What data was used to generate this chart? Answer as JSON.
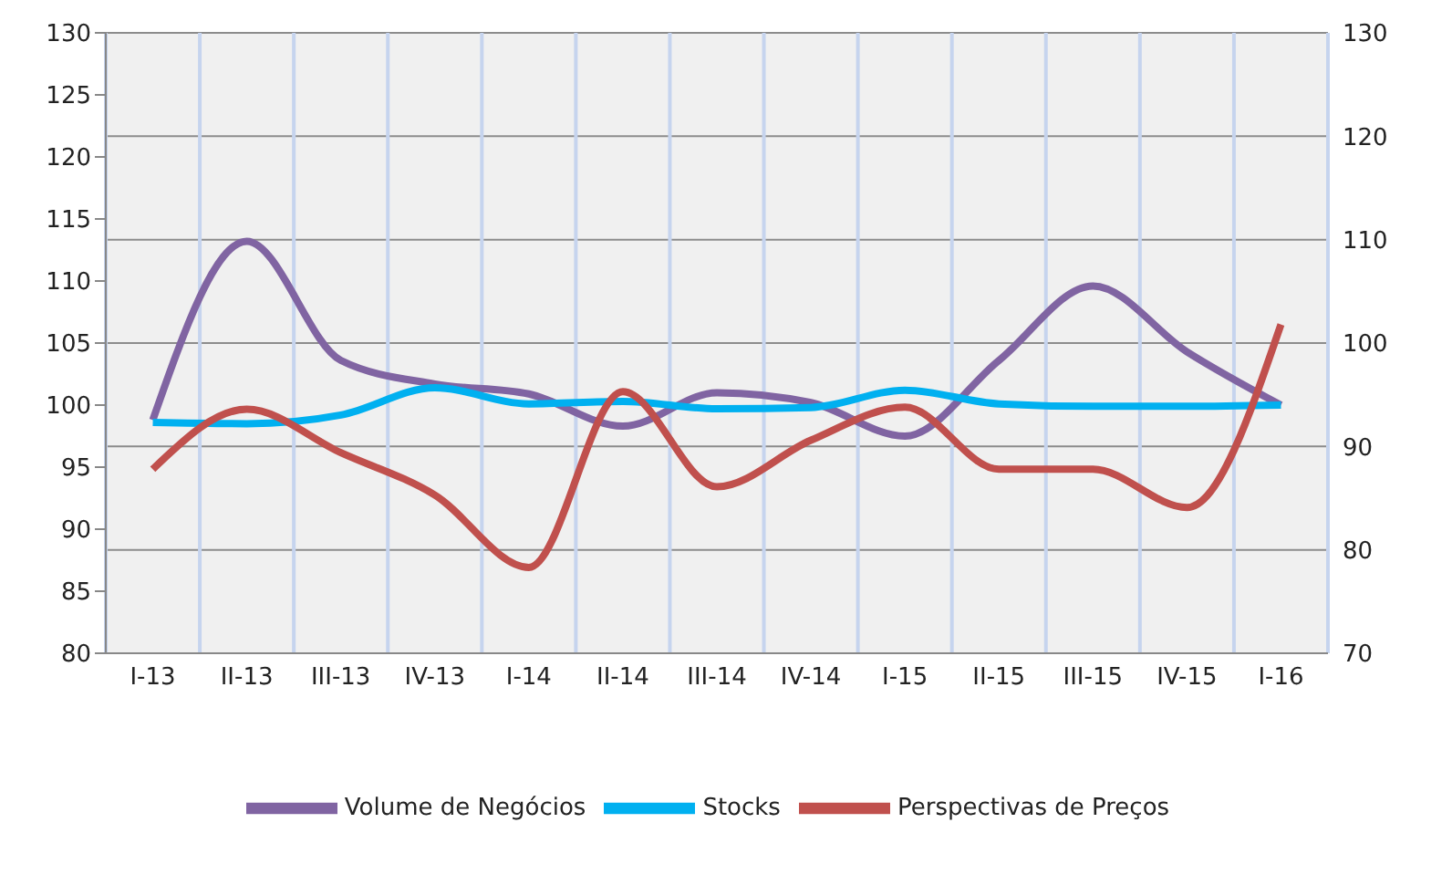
{
  "chart_data": {
    "type": "line",
    "categories": [
      "I-13",
      "II-13",
      "III-13",
      "IV-13",
      "I-14",
      "II-14",
      "III-14",
      "IV-14",
      "I-15",
      "II-15",
      "III-15",
      "IV-15",
      "I-16"
    ],
    "series": [
      {
        "name": "Volume de Negócios",
        "color": "#8064a2",
        "values": [
          98.8,
          113.2,
          103.6,
          101.7,
          100.9,
          98.3,
          101.0,
          100.2,
          97.5,
          103.6,
          109.6,
          104.3,
          100.0
        ]
      },
      {
        "name": "Stocks",
        "color": "#00b0f0",
        "values": [
          98.6,
          98.5,
          99.2,
          101.4,
          100.1,
          100.3,
          99.7,
          99.8,
          101.2,
          100.1,
          99.9,
          99.9,
          100.0
        ]
      },
      {
        "name": "Perspectivas de Preços",
        "color": "#c0504d",
        "axis": "y2",
        "values": [
          87.8,
          93.6,
          89.4,
          85.3,
          78.3,
          95.3,
          86.1,
          90.6,
          93.8,
          87.8,
          87.8,
          84.1,
          101.8
        ]
      }
    ],
    "ylim": [
      80,
      130
    ],
    "yticks": [
      80,
      85,
      90,
      95,
      100,
      105,
      110,
      115,
      120,
      125,
      130
    ],
    "y2lim": [
      70,
      130
    ],
    "y2ticks": [
      70,
      80,
      90,
      100,
      110,
      120,
      130
    ],
    "grid": true,
    "legend": "bottom",
    "marker": "none",
    "line_style": "solid"
  }
}
